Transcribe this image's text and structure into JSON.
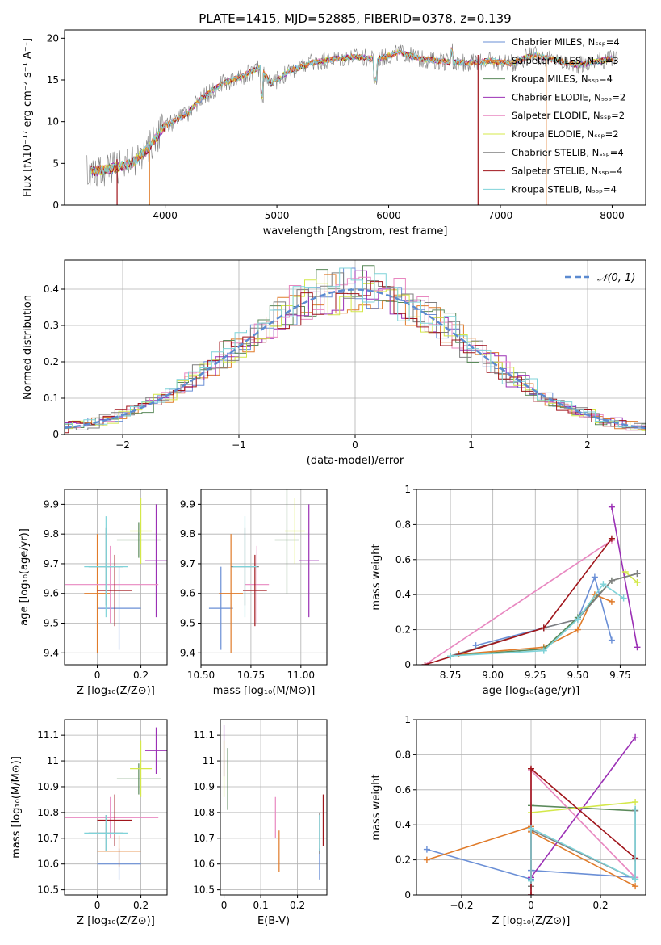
{
  "colors": {
    "series": [
      "#6a8fd6",
      "#e07b2a",
      "#5b8a5b",
      "#9b30b5",
      "#e887c0",
      "#d4e84a",
      "#7f7f7f",
      "#a0151b",
      "#7fd3d9"
    ],
    "dashed": "#5b8ad0",
    "grid": "#b0b0b0"
  },
  "chart_data": [
    {
      "type": "line",
      "title": "PLATE=1415, MJD=52885, FIBERID=0378, z=0.139",
      "xlabel": "wavelength [Angstrom, rest frame]",
      "ylabel": "Flux [fλ10⁻¹⁷ erg cm⁻² s⁻¹ A⁻¹]",
      "xlim": [
        3100,
        8300
      ],
      "ylim": [
        0,
        21
      ],
      "xticks": [
        4000,
        5000,
        6000,
        7000,
        8000
      ],
      "yticks": [
        0,
        5,
        10,
        15,
        20
      ],
      "legend_location": "right",
      "legend": [
        {
          "label": "Chabrier MILES, Nₛₛₚ=4"
        },
        {
          "label": "Salpeter MILES, Nₛₛₚ=3"
        },
        {
          "label": "Kroupa MILES, Nₛₛₚ=4"
        },
        {
          "label": "Chabrier ELODIE, Nₛₛₚ=2"
        },
        {
          "label": "Salpeter ELODIE, Nₛₛₚ=2"
        },
        {
          "label": "Kroupa ELODIE, Nₛₛₚ=2"
        },
        {
          "label": "Chabrier STELIB, Nₛₛₚ=4"
        },
        {
          "label": "Salpeter STELIB, Nₛₛₚ=4"
        },
        {
          "label": "Kroupa STELIB, Nₛₛₚ=4"
        }
      ],
      "spectrum_envelope": {
        "x": [
          3300,
          3500,
          3700,
          3850,
          4000,
          4100,
          4200,
          4300,
          4500,
          4700,
          4850,
          4950,
          5100,
          5300,
          5500,
          5700,
          5900,
          6100,
          6300,
          6500,
          6700,
          6900,
          7100,
          7300,
          7500,
          7700,
          7900,
          8050
        ],
        "y": [
          4.0,
          4.3,
          5.0,
          6.8,
          9.5,
          10.2,
          11.0,
          12.5,
          14.5,
          15.5,
          16.5,
          14.5,
          16.0,
          17.0,
          17.5,
          17.8,
          17.5,
          18.3,
          17.5,
          17.2,
          17.0,
          17.3,
          17.0,
          18.0,
          17.3,
          16.8,
          17.3,
          17.7
        ]
      }
    },
    {
      "type": "line",
      "xlabel": "(data-model)/error",
      "ylabel": "Normed distribution",
      "xlim": [
        -2.5,
        2.5
      ],
      "ylim": [
        0,
        0.48
      ],
      "xticks": [
        -2,
        -1,
        0,
        1,
        2
      ],
      "yticks": [
        0.0,
        0.1,
        0.2,
        0.3,
        0.4
      ],
      "legend": [
        {
          "label": "𝒩(0, 1)"
        }
      ],
      "legend_location": "top-right"
    },
    {
      "type": "scatter",
      "xlabel": "Z [log₁₀(Z/Z⊙)]",
      "ylabel": "age  [log₁₀(age/yr)]",
      "xlim": [
        -0.15,
        0.32
      ],
      "ylim": [
        9.36,
        9.95
      ],
      "xticks": [
        0.0,
        0.2
      ],
      "yticks": [
        9.4,
        9.5,
        9.6,
        9.7,
        9.8,
        9.9
      ],
      "points": [
        {
          "x": 0.1,
          "y": 9.55,
          "xerr": 0.1,
          "yerr": 0.14
        },
        {
          "x": 0.0,
          "y": 9.6,
          "xerr": 0.06,
          "yerr": 0.2
        },
        {
          "x": 0.19,
          "y": 9.78,
          "xerr": 0.1,
          "yerr": 0.06
        },
        {
          "x": 0.27,
          "y": 9.71,
          "xerr": 0.05,
          "yerr": 0.19
        },
        {
          "x": 0.06,
          "y": 9.63,
          "xerr": 0.22,
          "yerr": 0.13
        },
        {
          "x": 0.2,
          "y": 9.81,
          "xerr": 0.05,
          "yerr": 0.11
        },
        {
          "x": 0.04,
          "y": 9.69,
          "xerr": 0.08,
          "yerr": 0.13
        },
        {
          "x": 0.08,
          "y": 9.61,
          "xerr": 0.08,
          "yerr": 0.12
        },
        {
          "x": 0.04,
          "y": 9.69,
          "xerr": 0.1,
          "yerr": 0.17
        }
      ]
    },
    {
      "type": "scatter",
      "xlabel": "mass [log₁₀(M/M⊙)]",
      "xlim": [
        10.5,
        11.13
      ],
      "ylim": [
        9.36,
        9.95
      ],
      "xticks": [
        10.5,
        10.75,
        11.0
      ],
      "xticklabels": [
        "10.50",
        "10.75",
        "11.00"
      ],
      "yticks": [
        9.4,
        9.5,
        9.6,
        9.7,
        9.8,
        9.9
      ],
      "points": [
        {
          "x": 10.6,
          "y": 9.55,
          "xerr": 0.06,
          "yerr": 0.14
        },
        {
          "x": 10.65,
          "y": 9.6,
          "xerr": 0.06,
          "yerr": 0.2
        },
        {
          "x": 10.93,
          "y": 9.78,
          "xerr": 0.06,
          "yerr": 0.18
        },
        {
          "x": 11.04,
          "y": 9.71,
          "xerr": 0.05,
          "yerr": 0.19
        },
        {
          "x": 10.78,
          "y": 9.63,
          "xerr": 0.06,
          "yerr": 0.13
        },
        {
          "x": 10.97,
          "y": 9.81,
          "xerr": 0.05,
          "yerr": 0.11
        },
        {
          "x": 10.72,
          "y": 9.69,
          "xerr": 0.07,
          "yerr": 0.13
        },
        {
          "x": 10.77,
          "y": 9.61,
          "xerr": 0.06,
          "yerr": 0.12
        },
        {
          "x": 10.72,
          "y": 9.69,
          "xerr": 0.06,
          "yerr": 0.17
        }
      ]
    },
    {
      "type": "line",
      "xlabel": "age  [log₁₀(age/yr)]",
      "ylabel": "mass weight",
      "xlim": [
        8.55,
        9.9
      ],
      "ylim": [
        0,
        1.0
      ],
      "xticks": [
        8.75,
        9.0,
        9.25,
        9.5,
        9.75
      ],
      "xticklabels": [
        "8.75",
        "9.00",
        "9.25",
        "9.50",
        "9.75"
      ],
      "yticks": [
        0.0,
        0.2,
        0.4,
        0.6,
        0.8,
        1.0
      ],
      "series": [
        {
          "x": [
            8.9,
            9.3,
            9.5,
            9.6,
            9.7
          ],
          "y": [
            0.11,
            0.21,
            0.26,
            0.5,
            0.14
          ]
        },
        {
          "x": [
            8.8,
            9.3,
            9.5,
            9.6,
            9.7
          ],
          "y": [
            0.06,
            0.1,
            0.2,
            0.4,
            0.36
          ]
        },
        {
          "x": [
            8.75,
            9.3,
            9.5,
            9.7,
            9.85
          ],
          "y": [
            0.05,
            0.09,
            0.27,
            0.48,
            0.52
          ]
        },
        {
          "x": [
            9.7,
            9.85
          ],
          "y": [
            0.9,
            0.1
          ]
        },
        {
          "x": [
            8.6,
            9.7
          ],
          "y": [
            0.0,
            0.71
          ]
        },
        {
          "x": [
            9.78,
            9.85
          ],
          "y": [
            0.53,
            0.47
          ]
        },
        {
          "x": [
            8.75,
            9.3,
            9.5,
            9.7,
            9.85
          ],
          "y": [
            0.05,
            0.21,
            0.26,
            0.48,
            0.52
          ]
        },
        {
          "x": [
            8.6,
            9.3,
            9.7
          ],
          "y": [
            0.0,
            0.21,
            0.72
          ]
        },
        {
          "x": [
            8.75,
            9.3,
            9.5,
            9.65,
            9.77
          ],
          "y": [
            0.05,
            0.08,
            0.26,
            0.46,
            0.38
          ]
        }
      ]
    },
    {
      "type": "scatter",
      "xlabel": "Z [log₁₀(Z/Z⊙)]",
      "ylabel": "mass [log₁₀(M/M⊙)]",
      "xlim": [
        -0.15,
        0.32
      ],
      "ylim": [
        10.48,
        11.16
      ],
      "xticks": [
        0.0,
        0.2
      ],
      "yticks": [
        10.5,
        10.6,
        10.7,
        10.8,
        10.9,
        11.0,
        11.1
      ],
      "points": [
        {
          "x": 0.1,
          "y": 10.6,
          "xerr": 0.1,
          "yerr": 0.06
        },
        {
          "x": 0.1,
          "y": 10.65,
          "xerr": 0.1,
          "yerr": 0.06
        },
        {
          "x": 0.19,
          "y": 10.93,
          "xerr": 0.1,
          "yerr": 0.06
        },
        {
          "x": 0.27,
          "y": 11.04,
          "xerr": 0.05,
          "yerr": 0.09
        },
        {
          "x": 0.06,
          "y": 10.78,
          "xerr": 0.22,
          "yerr": 0.08
        },
        {
          "x": 0.2,
          "y": 10.97,
          "xerr": 0.05,
          "yerr": 0.11
        },
        {
          "x": 0.04,
          "y": 10.72,
          "xerr": 0.08,
          "yerr": 0.07
        },
        {
          "x": 0.08,
          "y": 10.77,
          "xerr": 0.08,
          "yerr": 0.1
        },
        {
          "x": 0.04,
          "y": 10.72,
          "xerr": 0.1,
          "yerr": 0.07
        }
      ]
    },
    {
      "type": "scatter",
      "xlabel": "E(B-V)",
      "xlim": [
        -0.01,
        0.28
      ],
      "ylim": [
        10.48,
        11.16
      ],
      "xticks": [
        0.0,
        0.1,
        0.2
      ],
      "yticks": [
        10.5,
        10.6,
        10.7,
        10.8,
        10.9,
        11.0,
        11.1
      ],
      "points": [
        {
          "x": 0.26,
          "y": 10.6,
          "yerr": 0.06
        },
        {
          "x": 0.15,
          "y": 10.65,
          "yerr": 0.08
        },
        {
          "x": 0.01,
          "y": 10.93,
          "yerr": 0.12
        },
        {
          "x": 0.0,
          "y": 11.04,
          "yerr": 0.1
        },
        {
          "x": 0.14,
          "y": 10.78,
          "yerr": 0.08
        },
        {
          "x": 0.0,
          "y": 10.97,
          "yerr": 0.11
        },
        {
          "x": 0.26,
          "y": 10.72,
          "yerr": 0.08
        },
        {
          "x": 0.27,
          "y": 10.77,
          "yerr": 0.1
        },
        {
          "x": 0.26,
          "y": 10.72,
          "yerr": 0.07
        }
      ]
    },
    {
      "type": "line",
      "xlabel": "Z [log₁₀(Z/Z⊙)]",
      "ylabel": "mass weight",
      "xlim": [
        -0.33,
        0.33
      ],
      "ylim": [
        0,
        1.0
      ],
      "xticks": [
        -0.2,
        0.0,
        0.2
      ],
      "yticks": [
        0.0,
        0.2,
        0.4,
        0.6,
        0.8,
        1.0
      ],
      "series": [
        {
          "x": [
            -0.3,
            0.0,
            0.0,
            0.3
          ],
          "y": [
            0.26,
            0.09,
            0.14,
            0.1
          ]
        },
        {
          "x": [
            -0.3,
            0.0,
            0.0,
            0.3
          ],
          "y": [
            0.2,
            0.39,
            0.36,
            0.05
          ]
        },
        {
          "x": [
            0.0,
            0.0,
            0.3,
            0.3
          ],
          "y": [
            0.05,
            0.51,
            0.48,
            0.49
          ]
        },
        {
          "x": [
            0.0,
            0.3
          ],
          "y": [
            0.1,
            0.9
          ]
        },
        {
          "x": [
            0.0,
            0.0,
            0.3
          ],
          "y": [
            0.0,
            0.71,
            0.1
          ]
        },
        {
          "x": [
            0.0,
            0.3
          ],
          "y": [
            0.47,
            0.53
          ]
        },
        {
          "x": [
            0.0,
            0.0,
            0.3,
            0.3
          ],
          "y": [
            0.05,
            0.37,
            0.09,
            0.48
          ]
        },
        {
          "x": [
            0.0,
            0.0,
            0.3
          ],
          "y": [
            0.0,
            0.72,
            0.21
          ]
        },
        {
          "x": [
            0.0,
            0.0,
            0.3,
            0.3
          ],
          "y": [
            0.08,
            0.38,
            0.09,
            0.49
          ]
        }
      ]
    }
  ]
}
